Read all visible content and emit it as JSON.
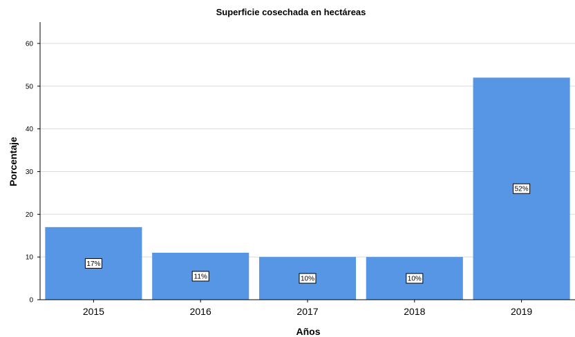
{
  "chart_data": {
    "type": "bar",
    "title": "Superficie cosechada en hectáreas",
    "xlabel": "Años",
    "ylabel": "Porcentaje",
    "categories": [
      "2015",
      "2016",
      "2017",
      "2018",
      "2019"
    ],
    "values": [
      17,
      11,
      10,
      10,
      52
    ],
    "data_labels": [
      "17%",
      "11%",
      "10%",
      "10%",
      "52%"
    ],
    "ylim": [
      0,
      65
    ],
    "yticks": [
      0,
      10,
      20,
      30,
      40,
      50,
      60
    ],
    "ytick_labels": [
      "0",
      "10",
      "20",
      "30",
      "40",
      "50",
      "60"
    ],
    "grid": true,
    "legend": "none",
    "bar_color": "#5696e4",
    "grid_color": "#d9d9d9"
  }
}
